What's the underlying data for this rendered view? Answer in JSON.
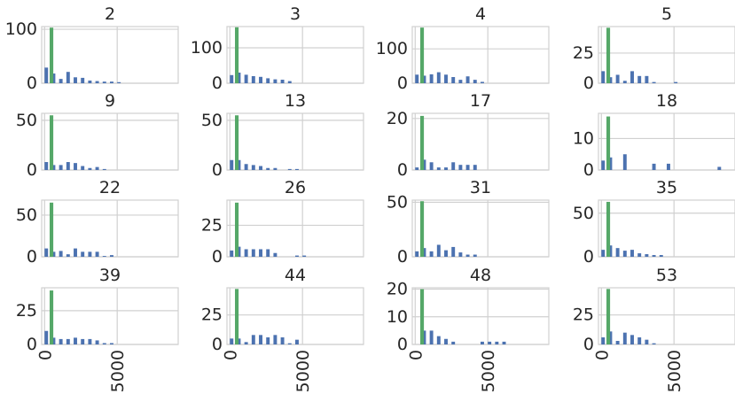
{
  "chart_data": {
    "type": "bar",
    "layout": "4x4 grid of small multiple histograms",
    "grid": true,
    "xlim": [
      -200,
      9200
    ],
    "x_ticks": [
      0,
      5000
    ],
    "colors": {
      "blue": "#4c72b0",
      "green": "#55a868"
    },
    "bin_starts": [
      0,
      500,
      1000,
      1500,
      2000,
      2500,
      3000,
      3500,
      4000,
      4500,
      5000,
      5500,
      6000,
      6500,
      7000,
      7500,
      8000,
      8500
    ],
    "bin_width": 500,
    "green_bin": [
      350,
      600
    ],
    "panels": [
      {
        "title": "2",
        "ylim": [
          0,
          105
        ],
        "y_ticks": [
          0,
          100
        ],
        "green": 103,
        "blue": [
          29,
          18,
          8,
          21,
          11,
          10,
          5,
          4,
          3,
          3,
          2,
          0,
          0,
          0,
          0,
          0,
          0,
          0
        ]
      },
      {
        "title": "3",
        "ylim": [
          0,
          160
        ],
        "y_ticks": [
          0,
          100
        ],
        "green": 158,
        "blue": [
          23,
          30,
          24,
          20,
          18,
          14,
          11,
          10,
          6,
          0,
          0,
          0,
          0,
          0,
          0,
          0,
          0,
          0
        ]
      },
      {
        "title": "4",
        "ylim": [
          0,
          165
        ],
        "y_ticks": [
          0,
          100
        ],
        "green": 162,
        "blue": [
          25,
          22,
          26,
          32,
          25,
          18,
          10,
          20,
          10,
          4,
          0,
          0,
          0,
          0,
          0,
          0,
          0,
          0
        ]
      },
      {
        "title": "5",
        "ylim": [
          0,
          47
        ],
        "y_ticks": [
          0,
          25
        ],
        "green": 46,
        "blue": [
          10,
          5,
          7,
          2,
          10,
          6,
          6,
          1,
          0,
          0,
          1,
          0,
          0,
          0,
          0,
          0,
          0,
          0
        ]
      },
      {
        "title": "9",
        "ylim": [
          0,
          57
        ],
        "y_ticks": [
          0,
          50
        ],
        "green": 55,
        "blue": [
          8,
          5,
          5,
          8,
          7,
          4,
          2,
          3,
          1,
          0,
          0,
          0,
          0,
          0,
          0,
          0,
          0,
          0
        ]
      },
      {
        "title": "13",
        "ylim": [
          0,
          57
        ],
        "y_ticks": [
          0,
          50
        ],
        "green": 55,
        "blue": [
          10,
          10,
          6,
          5,
          4,
          2,
          2,
          0,
          1,
          1,
          0,
          0,
          0,
          0,
          0,
          0,
          0,
          0
        ]
      },
      {
        "title": "17",
        "ylim": [
          0,
          22
        ],
        "y_ticks": [
          0,
          20
        ],
        "green": 21,
        "blue": [
          1,
          4,
          3,
          1,
          1,
          3,
          2,
          2,
          2,
          0,
          0,
          0,
          0,
          0,
          0,
          0,
          0,
          0
        ]
      },
      {
        "title": "18",
        "ylim": [
          0,
          18
        ],
        "y_ticks": [
          0,
          10
        ],
        "green": 17,
        "blue": [
          3,
          4,
          0,
          5,
          0,
          0,
          0,
          2,
          0,
          2,
          0,
          0,
          0,
          0,
          0,
          0,
          1,
          0
        ]
      },
      {
        "title": "22",
        "ylim": [
          0,
          68
        ],
        "y_ticks": [
          0,
          50
        ],
        "green": 65,
        "blue": [
          10,
          6,
          7,
          3,
          10,
          6,
          6,
          6,
          1,
          2,
          0,
          0,
          0,
          0,
          0,
          0,
          0,
          0
        ]
      },
      {
        "title": "26",
        "ylim": [
          0,
          45
        ],
        "y_ticks": [
          0,
          25
        ],
        "green": 43,
        "blue": [
          5,
          8,
          6,
          6,
          6,
          6,
          3,
          0,
          0,
          1,
          1,
          0,
          0,
          0,
          0,
          0,
          0,
          0
        ]
      },
      {
        "title": "31",
        "ylim": [
          0,
          52
        ],
        "y_ticks": [
          0,
          50
        ],
        "green": 51,
        "blue": [
          5,
          8,
          5,
          11,
          6,
          9,
          4,
          2,
          2,
          0,
          0,
          0,
          0,
          0,
          0,
          0,
          0,
          0
        ]
      },
      {
        "title": "35",
        "ylim": [
          0,
          65
        ],
        "y_ticks": [
          0,
          50
        ],
        "green": 63,
        "blue": [
          8,
          13,
          10,
          7,
          8,
          4,
          3,
          2,
          2,
          0,
          0,
          0,
          0,
          0,
          0,
          0,
          0,
          0
        ]
      },
      {
        "title": "39",
        "ylim": [
          0,
          42
        ],
        "y_ticks": [
          0,
          25
        ],
        "green": 40,
        "blue": [
          10,
          5,
          4,
          4,
          5,
          4,
          4,
          3,
          1,
          1,
          0,
          0,
          0,
          0,
          0,
          0,
          0,
          0
        ]
      },
      {
        "title": "44",
        "ylim": [
          0,
          48
        ],
        "y_ticks": [
          0,
          25
        ],
        "green": 47,
        "blue": [
          5,
          5,
          2,
          8,
          8,
          6,
          8,
          6,
          1,
          4,
          0,
          0,
          0,
          0,
          0,
          0,
          0,
          0
        ]
      },
      {
        "title": "48",
        "ylim": [
          0,
          20.5
        ],
        "y_ticks": [
          0,
          10,
          20
        ],
        "green": 20,
        "blue": [
          0,
          5,
          5,
          3,
          2,
          1,
          0,
          0,
          0,
          1,
          1,
          1,
          1,
          0,
          0,
          0,
          0,
          0
        ]
      },
      {
        "title": "53",
        "ylim": [
          0,
          48
        ],
        "y_ticks": [
          0,
          25
        ],
        "green": 47,
        "blue": [
          6,
          11,
          3,
          10,
          8,
          6,
          4,
          1,
          0,
          0,
          0,
          0,
          0,
          0,
          0,
          0,
          0,
          0
        ]
      }
    ],
    "bottom_row_tick_labels": [
      "0",
      "5000"
    ]
  }
}
